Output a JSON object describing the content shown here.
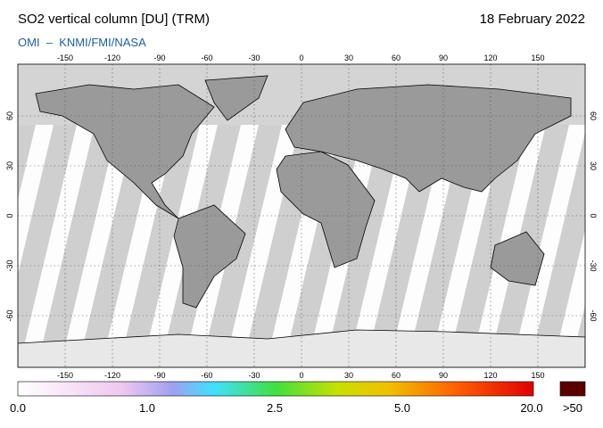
{
  "header": {
    "title": "SO2 vertical column [DU] (TRM)",
    "date": "18 February 2022",
    "source": "OMI  –  KNMI/FMI/NASA"
  },
  "map": {
    "lon_lim": [
      -180,
      180
    ],
    "lat_lim": [
      -90,
      90
    ],
    "lon_ticks": [
      -150,
      -120,
      -90,
      -60,
      -30,
      0,
      30,
      60,
      90,
      120,
      150
    ],
    "lat_ticks": [
      60,
      30,
      0,
      -30,
      -60
    ]
  },
  "colorbar": {
    "labels": [
      "0.0",
      "1.0",
      "2.5",
      "5.0",
      "20.0",
      ">50"
    ]
  }
}
